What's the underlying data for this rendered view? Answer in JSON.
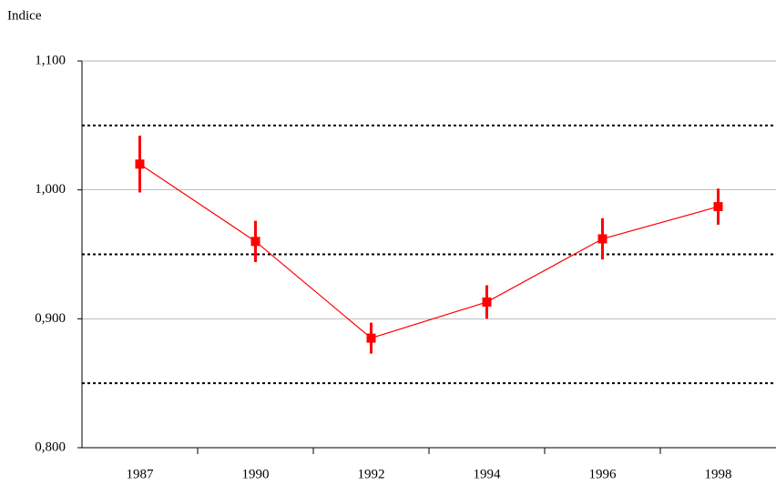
{
  "chart_data": {
    "type": "line",
    "y_label": "Indice",
    "categories": [
      "1987",
      "1990",
      "1992",
      "1994",
      "1996",
      "1998"
    ],
    "series": [
      {
        "color": "#ff0000",
        "values": [
          1.02,
          0.96,
          0.885,
          0.913,
          0.962,
          0.987
        ],
        "errors": [
          0.022,
          0.016,
          0.012,
          0.013,
          0.016,
          0.014
        ]
      }
    ],
    "ylim": [
      0.8,
      1.1
    ],
    "yticks": [
      {
        "value": 0.8,
        "label": "0,800"
      },
      {
        "value": 0.9,
        "label": "0,900"
      },
      {
        "value": 1.0,
        "label": "1,000"
      },
      {
        "value": 1.1,
        "label": "1,100"
      }
    ],
    "reference_lines": [
      1.05,
      0.95,
      0.85
    ],
    "grid": true
  }
}
